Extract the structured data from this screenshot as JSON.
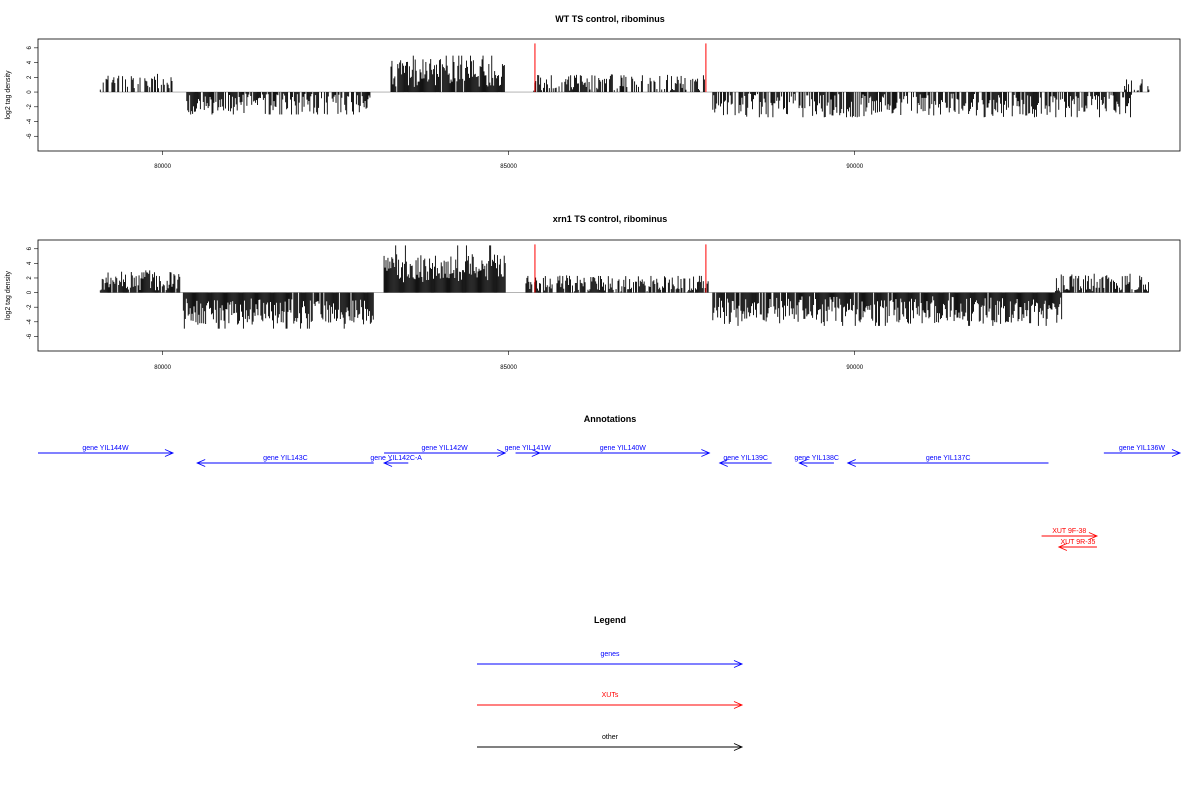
{
  "chart_data": [
    {
      "type": "bar",
      "title": "WT TS control, ribominus",
      "ylabel": "log2 tag density",
      "xlim": [
        78200,
        94700
      ],
      "ylim": [
        -8,
        7.2
      ],
      "xticks": [
        80000,
        85000,
        90000
      ],
      "yticks": [
        -6,
        -4,
        -2,
        0,
        2,
        4,
        6
      ],
      "grid": false,
      "baseline_color": "#aaaaaa",
      "marker_color": "#ff0000",
      "markers": [
        {
          "x": 85380,
          "value": 6.6
        },
        {
          "x": 87850,
          "value": 6.6
        }
      ],
      "segments": [
        {
          "start": 79100,
          "end": 80200,
          "mean": 1.3,
          "amp": 1.0,
          "density": 0.45
        },
        {
          "start": 80350,
          "end": 83000,
          "mean": -1.6,
          "amp": 1.4,
          "density": 0.75
        },
        {
          "start": 83300,
          "end": 84950,
          "mean": 2.6,
          "amp": 1.9,
          "density": 0.95
        },
        {
          "start": 85350,
          "end": 87900,
          "mean": 1.2,
          "amp": 1.2,
          "density": 0.55
        },
        {
          "start": 87950,
          "end": 94000,
          "mean": -1.8,
          "amp": 1.6,
          "density": 0.75
        },
        {
          "start": 93900,
          "end": 94250,
          "mean": 1.0,
          "amp": 0.8,
          "density": 0.5
        }
      ]
    },
    {
      "type": "bar",
      "title": "xrn1 TS control, ribominus",
      "ylabel": "log2 tag density",
      "xlim": [
        78200,
        94700
      ],
      "ylim": [
        -8,
        7.2
      ],
      "xticks": [
        80000,
        85000,
        90000
      ],
      "yticks": [
        -6,
        -4,
        -2,
        0,
        2,
        4,
        6
      ],
      "grid": false,
      "baseline_color": "#aaaaaa",
      "marker_color": "#ff0000",
      "markers": [
        {
          "x": 85380,
          "value": 6.6
        },
        {
          "x": 87850,
          "value": 6.6
        }
      ],
      "segments": [
        {
          "start": 79100,
          "end": 80250,
          "mean": 1.6,
          "amp": 1.3,
          "density": 0.85
        },
        {
          "start": 80300,
          "end": 83050,
          "mean": -2.6,
          "amp": 1.8,
          "density": 0.95
        },
        {
          "start": 83200,
          "end": 84950,
          "mean": 3.4,
          "amp": 2.0,
          "density": 1.0
        },
        {
          "start": 85250,
          "end": 87900,
          "mean": 1.2,
          "amp": 1.2,
          "density": 0.8
        },
        {
          "start": 87950,
          "end": 93000,
          "mean": -2.4,
          "amp": 1.9,
          "density": 0.95
        },
        {
          "start": 92900,
          "end": 94250,
          "mean": 1.2,
          "amp": 1.4,
          "density": 0.8
        }
      ]
    }
  ],
  "annotations": {
    "title": "Annotations",
    "xlim": [
      78200,
      94700
    ],
    "items": [
      {
        "label": "gene YIL144W",
        "start": 78200,
        "end": 80150,
        "strand": "+",
        "row": 0,
        "kind": "gene"
      },
      {
        "label": "gene YIL143C",
        "start": 80500,
        "end": 83050,
        "strand": "-",
        "row": 1,
        "kind": "gene"
      },
      {
        "label": "gene YIL142C-A",
        "start": 83200,
        "end": 83550,
        "strand": "-",
        "row": 1,
        "kind": "gene"
      },
      {
        "label": "gene YIL142W",
        "start": 83200,
        "end": 84950,
        "strand": "+",
        "row": 0,
        "kind": "gene"
      },
      {
        "label": "gene YIL141W",
        "start": 85100,
        "end": 85450,
        "strand": "+",
        "row": 0,
        "kind": "gene"
      },
      {
        "label": "gene YIL140W",
        "start": 85400,
        "end": 87900,
        "strand": "+",
        "row": 0,
        "kind": "gene"
      },
      {
        "label": "gene YIL139C",
        "start": 88050,
        "end": 88800,
        "strand": "-",
        "row": 1,
        "kind": "gene"
      },
      {
        "label": "gene YIL138C",
        "start": 89200,
        "end": 89700,
        "strand": "-",
        "row": 1,
        "kind": "gene"
      },
      {
        "label": "gene YIL137C",
        "start": 89900,
        "end": 92800,
        "strand": "-",
        "row": 1,
        "kind": "gene"
      },
      {
        "label": "gene YIL136W",
        "start": 93600,
        "end": 94700,
        "strand": "+",
        "row": 0,
        "kind": "gene"
      },
      {
        "label": "XUT 9F-38",
        "start": 92700,
        "end": 93500,
        "strand": "+",
        "row": 2,
        "kind": "xut"
      },
      {
        "label": "XUT 9R-35",
        "start": 92950,
        "end": 93500,
        "strand": "-",
        "row": 3,
        "kind": "xut"
      }
    ]
  },
  "legend": {
    "title": "Legend",
    "items": [
      {
        "label": "genes",
        "color": "#0000ff"
      },
      {
        "label": "XUTs",
        "color": "#ff0000"
      },
      {
        "label": "other",
        "color": "#000000"
      }
    ]
  }
}
